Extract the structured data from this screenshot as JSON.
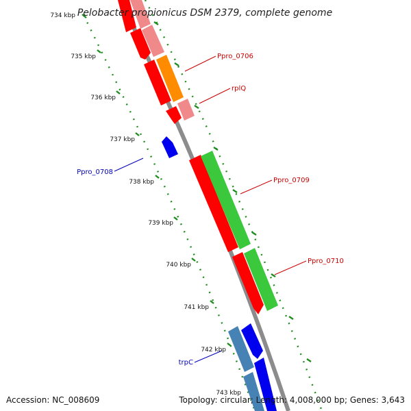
{
  "title": "Pelobacter propionicus DSM 2379, complete genome",
  "colors": {
    "backbone": "#8c8c8c",
    "tick_dots": "#1e8c1e",
    "forward_label": "#cc0000",
    "reverse_label": "#0000bb",
    "red": "#ff0000",
    "pink": "#f08a8a",
    "orange": "#ff8c00",
    "green": "#3cc83c",
    "blue": "#0000ee",
    "steelblue": "#4682b4"
  },
  "ticks": [
    {
      "label": "734 kbp"
    },
    {
      "label": "735 kbp"
    },
    {
      "label": "736 kbp"
    },
    {
      "label": "737 kbp"
    },
    {
      "label": "738 kbp"
    },
    {
      "label": "739 kbp"
    },
    {
      "label": "740 kbp"
    },
    {
      "label": "741 kbp"
    },
    {
      "label": "742 kbp"
    },
    {
      "label": "743 kbp"
    }
  ],
  "gene_labels": [
    {
      "name": "Ppro_0706",
      "strand": "forward"
    },
    {
      "name": "rplQ",
      "strand": "forward"
    },
    {
      "name": "Ppro_0708",
      "strand": "reverse"
    },
    {
      "name": "Ppro_0709",
      "strand": "forward"
    },
    {
      "name": "Ppro_0710",
      "strand": "forward"
    },
    {
      "name": "trpC",
      "strand": "reverse"
    }
  ],
  "footer": {
    "accession": "Accession: NC_008609",
    "stats": "Topology: circular; Length: 4,008,000 bp; Genes: 3,643"
  }
}
